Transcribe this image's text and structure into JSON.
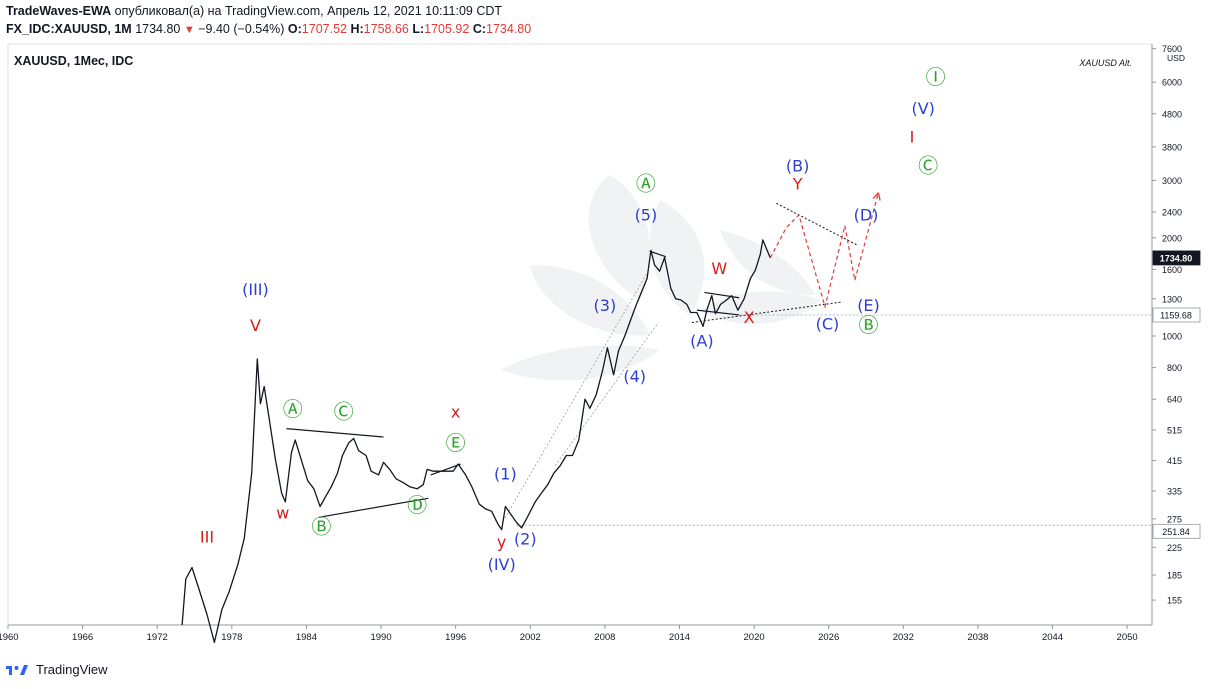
{
  "header": {
    "author": "TradeWaves-EWA",
    "published_text": " опубликовал(а) на TradingView.com, Апрель 12, 2021 10:11:09 CDT",
    "symbol": "FX_IDC:XAUUSD, 1M",
    "last": "1734.80",
    "change_arrow": "▼",
    "change": "−9.40 (−0.54%)",
    "o_label": "O:",
    "o_value": "1707.52",
    "h_label": "H:",
    "h_value": "1758.66",
    "l_label": "L:",
    "l_value": "1705.92",
    "c_label": "C:",
    "c_value": "1734.80"
  },
  "chart_title": "XAUUSD, 1Mес, IDC",
  "chart_subtitle": "XAUUSD Alt.",
  "footer": {
    "brand": "TradingView"
  },
  "colors": {
    "blue": "#2f33b8",
    "green": "#2ea12e",
    "red": "#d81b1b",
    "wave_blue": "#2c3fd1"
  },
  "chart_data": {
    "type": "line",
    "scale": "log",
    "xlim": [
      1960,
      2052
    ],
    "ylim": [
      130,
      7800
    ],
    "x_ticks": [
      "1960",
      "1966",
      "1972",
      "1978",
      "1984",
      "1990",
      "1996",
      "2002",
      "2008",
      "2014",
      "2020",
      "2026",
      "2032",
      "2038",
      "2044",
      "2050"
    ],
    "x_tick_values": [
      1960,
      1966,
      1972,
      1978,
      1984,
      1990,
      1996,
      2002,
      2008,
      2014,
      2020,
      2026,
      2032,
      2038,
      2044,
      2050
    ],
    "y_ticks": [
      "7600",
      "6000",
      "4800",
      "3800",
      "3000",
      "2400",
      "2000",
      "1600",
      "1300",
      "1000",
      "800",
      "640",
      "515",
      "415",
      "335",
      "275",
      "225",
      "185",
      "155"
    ],
    "y_tick_values": [
      7600,
      6000,
      4800,
      3800,
      3000,
      2400,
      2000,
      1600,
      1300,
      1000,
      800,
      640,
      515,
      415,
      335,
      275,
      225,
      185,
      155
    ],
    "y_unit": "USD",
    "price_labels": [
      {
        "value": 1734.8,
        "text": "1734.80",
        "style": "dark"
      },
      {
        "value": 1159.68,
        "text": "1159.68",
        "style": "light"
      },
      {
        "value": 251.84,
        "text": "251.84",
        "style": "light"
      }
    ],
    "series": [
      {
        "points": [
          [
            1974.0,
            130
          ],
          [
            1974.3,
            180
          ],
          [
            1974.8,
            195
          ],
          [
            1975.3,
            170
          ],
          [
            1976.0,
            140
          ],
          [
            1976.6,
            115
          ],
          [
            1977.2,
            145
          ],
          [
            1977.8,
            165
          ],
          [
            1978.5,
            200
          ],
          [
            1979.0,
            240
          ],
          [
            1979.6,
            380
          ],
          [
            1980.05,
            850
          ],
          [
            1980.3,
            620
          ],
          [
            1980.6,
            700
          ],
          [
            1981.0,
            560
          ],
          [
            1981.5,
            420
          ],
          [
            1982.0,
            330
          ],
          [
            1982.3,
            310
          ],
          [
            1982.8,
            440
          ],
          [
            1983.1,
            480
          ],
          [
            1983.6,
            415
          ],
          [
            1984.1,
            360
          ],
          [
            1984.6,
            340
          ],
          [
            1985.1,
            300
          ],
          [
            1985.5,
            320
          ],
          [
            1986.0,
            345
          ],
          [
            1986.5,
            380
          ],
          [
            1986.9,
            430
          ],
          [
            1987.4,
            470
          ],
          [
            1987.8,
            485
          ],
          [
            1988.2,
            445
          ],
          [
            1988.8,
            430
          ],
          [
            1989.2,
            385
          ],
          [
            1989.8,
            375
          ],
          [
            1990.2,
            410
          ],
          [
            1990.7,
            390
          ],
          [
            1991.2,
            365
          ],
          [
            1991.8,
            355
          ],
          [
            1992.3,
            345
          ],
          [
            1992.9,
            340
          ],
          [
            1993.4,
            350
          ],
          [
            1993.7,
            390
          ],
          [
            1994.2,
            385
          ],
          [
            1994.7,
            385
          ],
          [
            1995.2,
            385
          ],
          [
            1995.8,
            385
          ],
          [
            1996.2,
            405
          ],
          [
            1996.8,
            375
          ],
          [
            1997.3,
            345
          ],
          [
            1997.9,
            305
          ],
          [
            1998.4,
            295
          ],
          [
            1998.9,
            290
          ],
          [
            1999.4,
            265
          ],
          [
            1999.7,
            255
          ],
          [
            2000.0,
            300
          ],
          [
            2000.4,
            285
          ],
          [
            2000.9,
            268
          ],
          [
            2001.3,
            258
          ],
          [
            2001.8,
            280
          ],
          [
            2002.4,
            310
          ],
          [
            2002.9,
            330
          ],
          [
            2003.4,
            350
          ],
          [
            2003.9,
            380
          ],
          [
            2004.4,
            400
          ],
          [
            2004.9,
            430
          ],
          [
            2005.4,
            430
          ],
          [
            2005.9,
            480
          ],
          [
            2006.4,
            640
          ],
          [
            2006.8,
            600
          ],
          [
            2007.3,
            660
          ],
          [
            2007.8,
            780
          ],
          [
            2008.2,
            920
          ],
          [
            2008.7,
            760
          ],
          [
            2009.1,
            900
          ],
          [
            2009.6,
            1000
          ],
          [
            2010.0,
            1100
          ],
          [
            2010.5,
            1240
          ],
          [
            2011.0,
            1380
          ],
          [
            2011.4,
            1500
          ],
          [
            2011.7,
            1830
          ],
          [
            2012.0,
            1650
          ],
          [
            2012.4,
            1580
          ],
          [
            2012.8,
            1740
          ],
          [
            2013.3,
            1400
          ],
          [
            2013.7,
            1300
          ],
          [
            2014.1,
            1290
          ],
          [
            2014.6,
            1250
          ],
          [
            2014.9,
            1180
          ],
          [
            2015.4,
            1180
          ],
          [
            2015.9,
            1070
          ],
          [
            2016.2,
            1200
          ],
          [
            2016.6,
            1330
          ],
          [
            2016.9,
            1170
          ],
          [
            2017.3,
            1250
          ],
          [
            2017.8,
            1290
          ],
          [
            2018.2,
            1330
          ],
          [
            2018.7,
            1200
          ],
          [
            2019.2,
            1300
          ],
          [
            2019.7,
            1500
          ],
          [
            2020.1,
            1590
          ],
          [
            2020.5,
            1780
          ],
          [
            2020.7,
            1970
          ],
          [
            2021.0,
            1850
          ],
          [
            2021.3,
            1734.8
          ]
        ]
      }
    ],
    "projection": {
      "points": [
        [
          2021.3,
          1734.8
        ],
        [
          2022.6,
          2150
        ],
        [
          2023.6,
          2350
        ],
        [
          2025.7,
          1230
        ],
        [
          2027.3,
          2180
        ],
        [
          2028.1,
          1480
        ],
        [
          2030.0,
          2750
        ]
      ]
    },
    "wave_labels": [
      {
        "text": "III",
        "x": 1976.0,
        "y": 240,
        "color": "red"
      },
      {
        "text": "(III)",
        "x": 1979.9,
        "y": 1380,
        "color": "blue"
      },
      {
        "text": "V",
        "x": 1979.9,
        "y": 1070,
        "color": "red"
      },
      {
        "text": "Ⓐ",
        "x": 1982.9,
        "y": 590,
        "color": "green"
      },
      {
        "text": "Ⓒ",
        "x": 1987.0,
        "y": 580,
        "color": "green"
      },
      {
        "text": "w",
        "x": 1982.1,
        "y": 285,
        "color": "red"
      },
      {
        "text": "Ⓑ",
        "x": 1985.2,
        "y": 258,
        "color": "green"
      },
      {
        "text": "x",
        "x": 1996.0,
        "y": 580,
        "color": "red"
      },
      {
        "text": "Ⓔ",
        "x": 1996.0,
        "y": 465,
        "color": "green"
      },
      {
        "text": "Ⓓ",
        "x": 1992.9,
        "y": 300,
        "color": "green"
      },
      {
        "text": "(1)",
        "x": 2000.0,
        "y": 375,
        "color": "blue"
      },
      {
        "text": "y",
        "x": 1999.7,
        "y": 232,
        "color": "red"
      },
      {
        "text": "(2)",
        "x": 2001.6,
        "y": 237,
        "color": "blue"
      },
      {
        "text": "(IV)",
        "x": 1999.7,
        "y": 198,
        "color": "blue"
      },
      {
        "text": "(3)",
        "x": 2008.0,
        "y": 1230,
        "color": "blue"
      },
      {
        "text": "(4)",
        "x": 2010.4,
        "y": 745,
        "color": "blue"
      },
      {
        "text": "Ⓐ",
        "x": 2011.3,
        "y": 2900,
        "color": "green"
      },
      {
        "text": "(5)",
        "x": 2011.3,
        "y": 2330,
        "color": "blue"
      },
      {
        "text": "W",
        "x": 2017.2,
        "y": 1600,
        "color": "red"
      },
      {
        "text": "(A)",
        "x": 2015.8,
        "y": 960,
        "color": "blue"
      },
      {
        "text": "X",
        "x": 2019.6,
        "y": 1130,
        "color": "red"
      },
      {
        "text": "(B)",
        "x": 2023.5,
        "y": 3300,
        "color": "blue"
      },
      {
        "text": "Y",
        "x": 2023.5,
        "y": 2900,
        "color": "red"
      },
      {
        "text": "(C)",
        "x": 2025.9,
        "y": 1080,
        "color": "blue"
      },
      {
        "text": "(D)",
        "x": 2029.0,
        "y": 2330,
        "color": "blue"
      },
      {
        "text": "(E)",
        "x": 2029.2,
        "y": 1230,
        "color": "blue"
      },
      {
        "text": "Ⓑ",
        "x": 2029.2,
        "y": 1070,
        "color": "green"
      },
      {
        "text": "Ⓒ",
        "x": 2034.0,
        "y": 3300,
        "color": "green"
      },
      {
        "text": "I",
        "x": 2032.7,
        "y": 4050,
        "color": "red"
      },
      {
        "text": "(V)",
        "x": 2033.6,
        "y": 4950,
        "color": "blue"
      },
      {
        "text": "Ⓘ",
        "x": 2034.6,
        "y": 6150,
        "color": "green"
      }
    ]
  }
}
